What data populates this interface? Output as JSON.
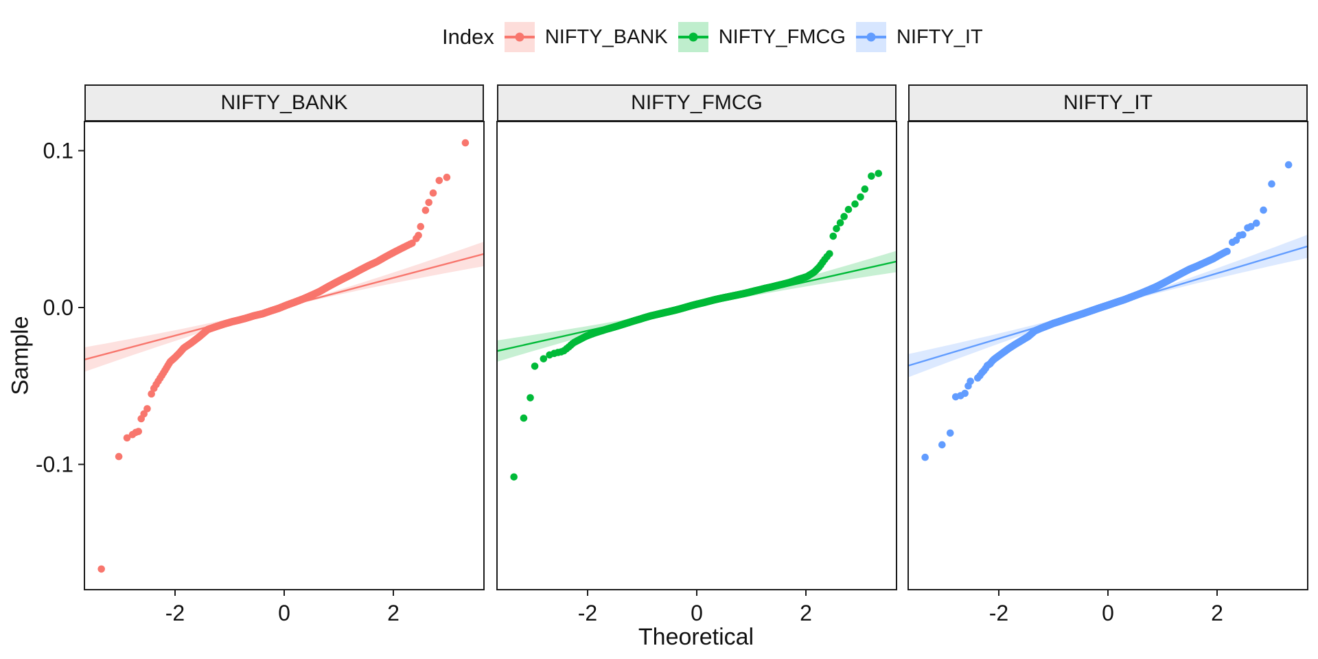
{
  "legend": {
    "title": "Index"
  },
  "chart_data": {
    "type": "scatter",
    "subtype": "normal-qq-plot-faceted",
    "title": "",
    "xlabel": "Theoretical",
    "ylabel": "Sample",
    "x_ticks": [
      {
        "v": -2,
        "label": "-2"
      },
      {
        "v": 0,
        "label": "0"
      },
      {
        "v": 2,
        "label": "2"
      }
    ],
    "y_ticks": [
      {
        "v": 0.1,
        "label": "0.1"
      },
      {
        "v": 0.0,
        "label": "0.0"
      },
      {
        "v": -0.1,
        "label": "-0.1"
      }
    ],
    "xlim": [
      -3.66,
      3.66
    ],
    "ylim": [
      -0.1866,
      0.1186
    ],
    "n_obs": 1000,
    "legend_position": "top",
    "grid": false,
    "series": [
      {
        "name": "NIFTY_BANK",
        "color": "#F8766D",
        "line": {
          "slope": 0.0092,
          "intercept": 0.0005
        },
        "band_halfwidth": 0.0078,
        "curve_anchors": [
          [
            -2.47,
            -0.058
          ],
          [
            -2.38,
            -0.051
          ],
          [
            -2.3,
            -0.0465
          ],
          [
            -2.2,
            -0.041
          ],
          [
            -2.09,
            -0.0346
          ],
          [
            -2.0,
            -0.0318
          ],
          [
            -1.92,
            -0.029
          ],
          [
            -1.84,
            -0.0258
          ],
          [
            -1.7,
            -0.0225
          ],
          [
            -1.55,
            -0.0185
          ],
          [
            -1.4,
            -0.014
          ],
          [
            -1.25,
            -0.0122
          ],
          [
            -1.1,
            -0.0105
          ],
          [
            -0.95,
            -0.009
          ],
          [
            -0.83,
            -0.008
          ],
          [
            -0.7,
            -0.0068
          ],
          [
            -0.55,
            -0.0052
          ],
          [
            -0.4,
            -0.004
          ],
          [
            -0.25,
            -0.0022
          ],
          [
            -0.1,
            -0.0005
          ],
          [
            0.05,
            0.0016
          ],
          [
            0.2,
            0.0035
          ],
          [
            0.35,
            0.0055
          ],
          [
            0.5,
            0.0078
          ],
          [
            0.65,
            0.0102
          ],
          [
            0.8,
            0.0132
          ],
          [
            0.95,
            0.016
          ],
          [
            1.1,
            0.0187
          ],
          [
            1.25,
            0.0213
          ],
          [
            1.4,
            0.0241
          ],
          [
            1.55,
            0.0268
          ],
          [
            1.7,
            0.0292
          ],
          [
            1.85,
            0.0322
          ],
          [
            2.0,
            0.035
          ],
          [
            2.1,
            0.0368
          ],
          [
            2.25,
            0.0394
          ],
          [
            2.38,
            0.0416
          ]
        ],
        "tail_points_low": [
          [
            -3.35,
            -0.1667
          ],
          [
            -3.03,
            -0.095
          ],
          [
            -2.88,
            -0.0831
          ],
          [
            -2.78,
            -0.081
          ],
          [
            -2.72,
            -0.0796
          ],
          [
            -2.67,
            -0.079
          ],
          [
            -2.62,
            -0.0709
          ],
          [
            -2.57,
            -0.0678
          ],
          [
            -2.51,
            -0.0645
          ]
        ],
        "tail_points_high": [
          [
            2.42,
            0.044
          ],
          [
            2.46,
            0.046
          ],
          [
            2.5,
            0.0516
          ],
          [
            2.59,
            0.062
          ],
          [
            2.65,
            0.067
          ],
          [
            2.73,
            0.073
          ],
          [
            2.84,
            0.081
          ],
          [
            2.98,
            0.083
          ],
          [
            3.32,
            0.105
          ]
        ]
      },
      {
        "name": "NIFTY_FMCG",
        "color": "#00BA38",
        "line": {
          "slope": 0.0078,
          "intercept": 0.0008
        },
        "band_halfwidth": 0.0068,
        "curve_anchors": [
          [
            -2.99,
            -0.0381
          ],
          [
            -2.9,
            -0.0352
          ],
          [
            -2.82,
            -0.033
          ],
          [
            -2.72,
            -0.0305
          ],
          [
            -2.64,
            -0.0295
          ],
          [
            -2.55,
            -0.0287
          ],
          [
            -2.45,
            -0.028
          ],
          [
            -2.35,
            -0.0253
          ],
          [
            -2.26,
            -0.0225
          ],
          [
            -2.15,
            -0.0205
          ],
          [
            -2.04,
            -0.0185
          ],
          [
            -1.95,
            -0.0172
          ],
          [
            -1.85,
            -0.016
          ],
          [
            -1.76,
            -0.015
          ],
          [
            -1.67,
            -0.014
          ],
          [
            -1.56,
            -0.0129
          ],
          [
            -1.45,
            -0.0118
          ],
          [
            -1.35,
            -0.0107
          ],
          [
            -1.25,
            -0.0096
          ],
          [
            -1.15,
            -0.0085
          ],
          [
            -1.05,
            -0.0075
          ],
          [
            -0.95,
            -0.0064
          ],
          [
            -0.84,
            -0.0053
          ],
          [
            -0.73,
            -0.0044
          ],
          [
            -0.62,
            -0.0035
          ],
          [
            -0.52,
            -0.0027
          ],
          [
            -0.41,
            -0.0018
          ],
          [
            -0.3,
            -0.0008
          ],
          [
            -0.2,
            0.0002
          ],
          [
            -0.1,
            0.0012
          ],
          [
            0.01,
            0.0022
          ],
          [
            0.12,
            0.0031
          ],
          [
            0.22,
            0.004
          ],
          [
            0.32,
            0.0049
          ],
          [
            0.42,
            0.0057
          ],
          [
            0.53,
            0.0065
          ],
          [
            0.63,
            0.0072
          ],
          [
            0.74,
            0.008
          ],
          [
            0.85,
            0.0088
          ],
          [
            0.95,
            0.0096
          ],
          [
            1.05,
            0.0105
          ],
          [
            1.16,
            0.0114
          ],
          [
            1.26,
            0.0123
          ],
          [
            1.37,
            0.0131
          ],
          [
            1.47,
            0.014
          ],
          [
            1.58,
            0.0149
          ],
          [
            1.68,
            0.0158
          ],
          [
            1.77,
            0.0168
          ],
          [
            1.85,
            0.0178
          ],
          [
            1.94,
            0.0188
          ],
          [
            2.02,
            0.0197
          ],
          [
            2.15,
            0.0225
          ],
          [
            2.25,
            0.026
          ],
          [
            2.32,
            0.0295
          ],
          [
            2.4,
            0.033
          ],
          [
            2.45,
            0.035
          ]
        ],
        "tail_points_low": [
          [
            -3.35,
            -0.108
          ],
          [
            -3.17,
            -0.0705
          ],
          [
            -3.05,
            -0.0575
          ]
        ],
        "tail_points_high": [
          [
            2.5,
            0.0455
          ],
          [
            2.56,
            0.0503
          ],
          [
            2.63,
            0.054
          ],
          [
            2.7,
            0.058
          ],
          [
            2.78,
            0.0625
          ],
          [
            2.9,
            0.066
          ],
          [
            3.0,
            0.0705
          ],
          [
            3.08,
            0.0755
          ],
          [
            3.2,
            0.0838
          ],
          [
            3.33,
            0.0855
          ]
        ]
      },
      {
        "name": "NIFTY_IT",
        "color": "#619CFF",
        "line": {
          "slope": 0.0104,
          "intercept": 0.001
        },
        "band_halfwidth": 0.0074,
        "curve_anchors": [
          [
            -2.42,
            -0.0455
          ],
          [
            -2.37,
            -0.0446
          ],
          [
            -2.31,
            -0.0416
          ],
          [
            -2.25,
            -0.0394
          ],
          [
            -2.22,
            -0.0372
          ],
          [
            -2.16,
            -0.0359
          ],
          [
            -2.12,
            -0.0341
          ],
          [
            -2.08,
            -0.0328
          ],
          [
            -1.95,
            -0.0295
          ],
          [
            -1.82,
            -0.0262
          ],
          [
            -1.7,
            -0.0235
          ],
          [
            -1.58,
            -0.021
          ],
          [
            -1.46,
            -0.0185
          ],
          [
            -1.34,
            -0.0149
          ],
          [
            -1.22,
            -0.0131
          ],
          [
            -1.1,
            -0.0115
          ],
          [
            -1.0,
            -0.0101
          ],
          [
            -0.9,
            -0.009
          ],
          [
            -0.75,
            -0.0072
          ],
          [
            -0.6,
            -0.0055
          ],
          [
            -0.45,
            -0.0038
          ],
          [
            -0.3,
            -0.002
          ],
          [
            -0.15,
            -0.0002
          ],
          [
            0.0,
            0.0015
          ],
          [
            0.15,
            0.0033
          ],
          [
            0.3,
            0.005
          ],
          [
            0.45,
            0.007
          ],
          [
            0.6,
            0.009
          ],
          [
            0.75,
            0.0112
          ],
          [
            0.9,
            0.0135
          ],
          [
            1.05,
            0.0162
          ],
          [
            1.2,
            0.019
          ],
          [
            1.35,
            0.0218
          ],
          [
            1.5,
            0.0245
          ],
          [
            1.62,
            0.0262
          ],
          [
            1.74,
            0.0281
          ],
          [
            1.86,
            0.03
          ],
          [
            1.93,
            0.0311
          ],
          [
            2.05,
            0.0335
          ],
          [
            2.16,
            0.0355
          ],
          [
            2.2,
            0.036
          ]
        ],
        "tail_points_low": [
          [
            -3.35,
            -0.0955
          ],
          [
            -3.04,
            -0.0875
          ],
          [
            -2.89,
            -0.08
          ],
          [
            -2.79,
            -0.0569
          ],
          [
            -2.7,
            -0.0562
          ],
          [
            -2.62,
            -0.0547
          ],
          [
            -2.56,
            -0.05
          ],
          [
            -2.52,
            -0.047
          ]
        ],
        "tail_points_high": [
          [
            2.28,
            0.0416
          ],
          [
            2.35,
            0.0429
          ],
          [
            2.41,
            0.046
          ],
          [
            2.47,
            0.0464
          ],
          [
            2.56,
            0.0508
          ],
          [
            2.62,
            0.0516
          ],
          [
            2.72,
            0.0538
          ],
          [
            2.85,
            0.0621
          ],
          [
            3.0,
            0.0788
          ],
          [
            3.31,
            0.091
          ]
        ]
      }
    ]
  },
  "style": {
    "band_opacity": 0.22,
    "strip_fill": "#ECECEC",
    "border_color": "#1a1a1a",
    "text_color": "#111111"
  }
}
